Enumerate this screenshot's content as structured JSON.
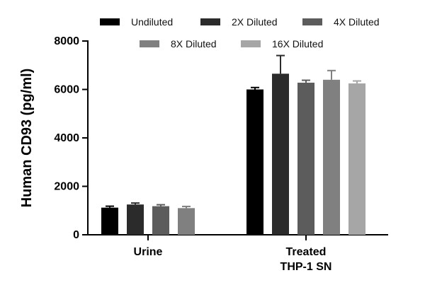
{
  "chart_data": {
    "type": "bar",
    "ylabel": "Human CD93 (pg/ml)",
    "ylim": [
      0,
      8000
    ],
    "yticks": [
      0,
      2000,
      4000,
      6000,
      8000
    ],
    "categories": [
      {
        "lines": [
          "Urine"
        ]
      },
      {
        "lines": [
          "Treated",
          "THP-1 SN"
        ]
      }
    ],
    "series": [
      {
        "name": "Undiluted",
        "color": "#000000",
        "values": [
          1120,
          6000
        ],
        "errors": [
          60,
          80
        ],
        "present": [
          true,
          true
        ]
      },
      {
        "name": "2X Diluted",
        "color": "#2b2b2b",
        "values": [
          1250,
          6650
        ],
        "errors": [
          60,
          750
        ],
        "present": [
          true,
          true
        ]
      },
      {
        "name": "4X Diluted",
        "color": "#5c5c5c",
        "values": [
          1180,
          6280
        ],
        "errors": [
          60,
          100
        ],
        "present": [
          true,
          true
        ]
      },
      {
        "name": "8X Diluted",
        "color": "#808080",
        "values": [
          1100,
          6400
        ],
        "errors": [
          70,
          380
        ],
        "present": [
          true,
          true
        ]
      },
      {
        "name": "16X Diluted",
        "color": "#a6a6a6",
        "values": [
          null,
          6250
        ],
        "errors": [
          null,
          100
        ],
        "present": [
          false,
          true
        ]
      }
    ],
    "legend": "top",
    "grid": false
  }
}
